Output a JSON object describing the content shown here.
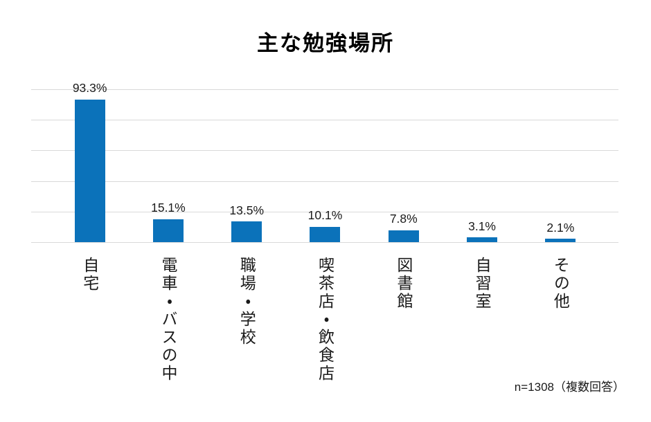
{
  "title": "主な勉強場所",
  "footer": {
    "text": "n=1308（複数回答）"
  },
  "colors": {
    "bar": "#0b72ba",
    "gridline": "#d9d9d9",
    "title_text": "#000000",
    "label_text": "#1a1a1a",
    "background": "#ffffff"
  },
  "chart_data": {
    "type": "bar",
    "title": "主な勉強場所",
    "categories": [
      "自宅",
      "電車・バスの中",
      "職場・学校",
      "喫茶店・飲食店",
      "図書館",
      "自習室",
      "その他"
    ],
    "values": [
      93.3,
      15.1,
      13.5,
      10.1,
      7.8,
      3.1,
      2.1
    ],
    "value_labels": [
      "93.3%",
      "15.1%",
      "13.5%",
      "10.1%",
      "7.8%",
      "3.1%",
      "2.1%"
    ],
    "xlabel": "",
    "ylabel": "",
    "ylim": [
      0,
      100
    ],
    "gridlines_percent": [
      0,
      20,
      40,
      60,
      80,
      100
    ],
    "grid": "horizontal",
    "legend": "none",
    "y_axis_labels_visible": false,
    "note": "n=1308（複数回答）"
  }
}
